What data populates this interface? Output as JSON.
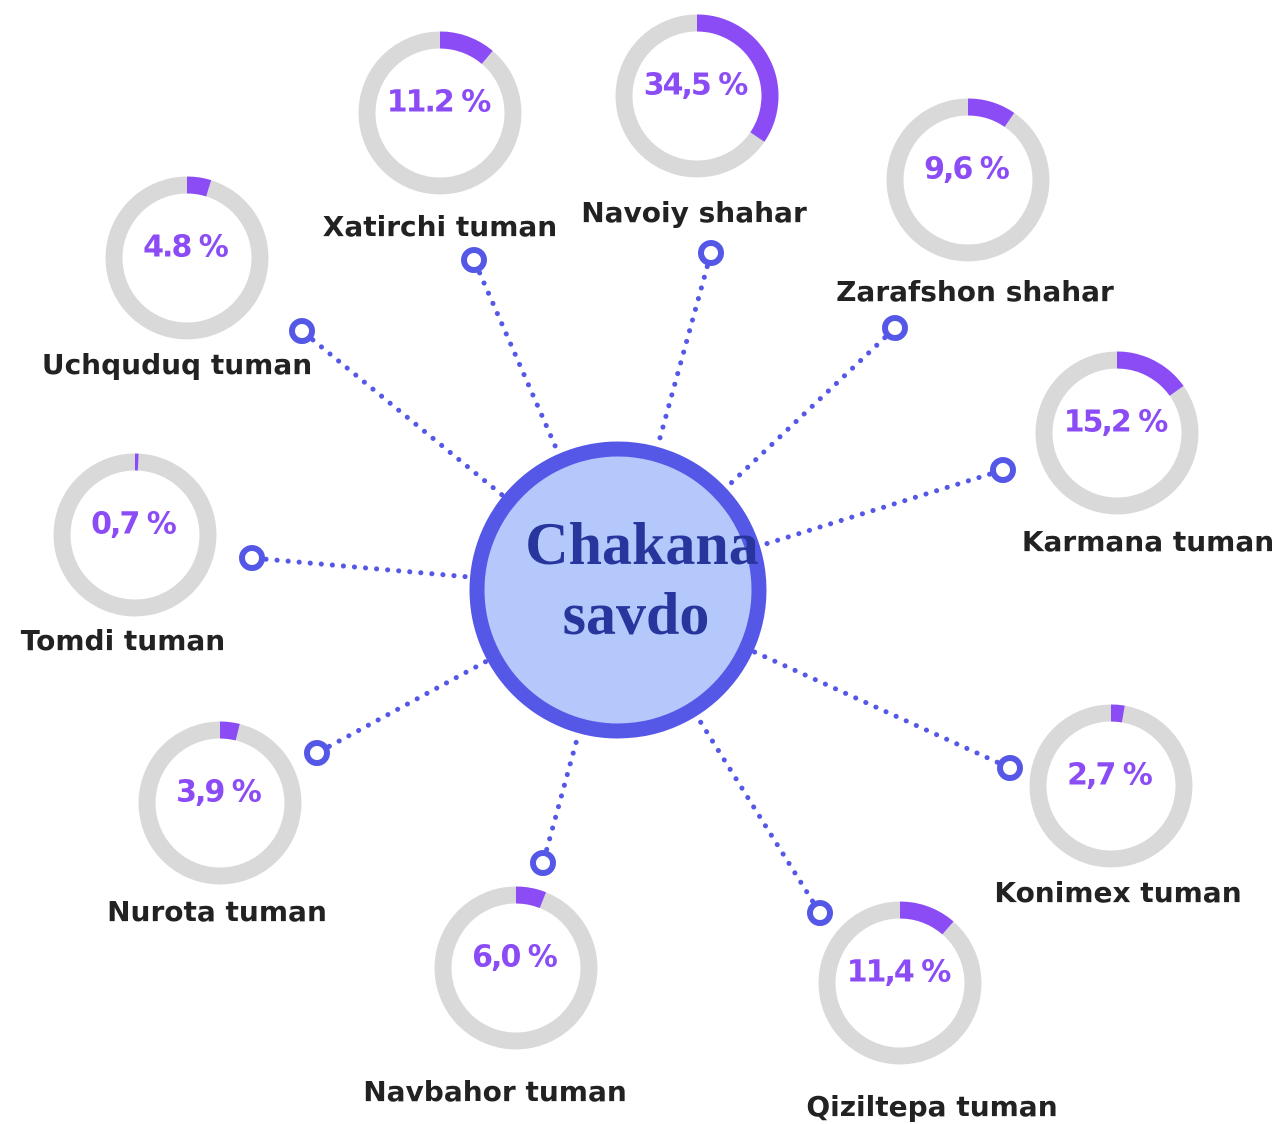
{
  "chart_data": {
    "type": "radial-gauges",
    "title": "Chakana savdo",
    "categories": [
      "Xatirchi tuman",
      "Navoiy shahar",
      "Zarafshon shahar",
      "Uchquduq tuman",
      "Karmana tuman",
      "Tomdi tuman",
      "Nurota tuman",
      "Konimex tuman",
      "Navbahor tuman",
      "Qiziltepa tuman"
    ],
    "values": [
      11.2,
      34.5,
      9.6,
      4.8,
      15.2,
      0.7,
      3.9,
      2.7,
      6.0,
      11.4
    ],
    "value_labels": [
      "11.2 %",
      "34,5 %",
      "9,6 %",
      "4.8 %",
      "15,2 %",
      "0,7 %",
      "3,9 %",
      "2,7 %",
      "6,0 %",
      "11,4 %"
    ],
    "ylim": [
      0,
      100
    ],
    "color": "#8b4cf6"
  }
}
